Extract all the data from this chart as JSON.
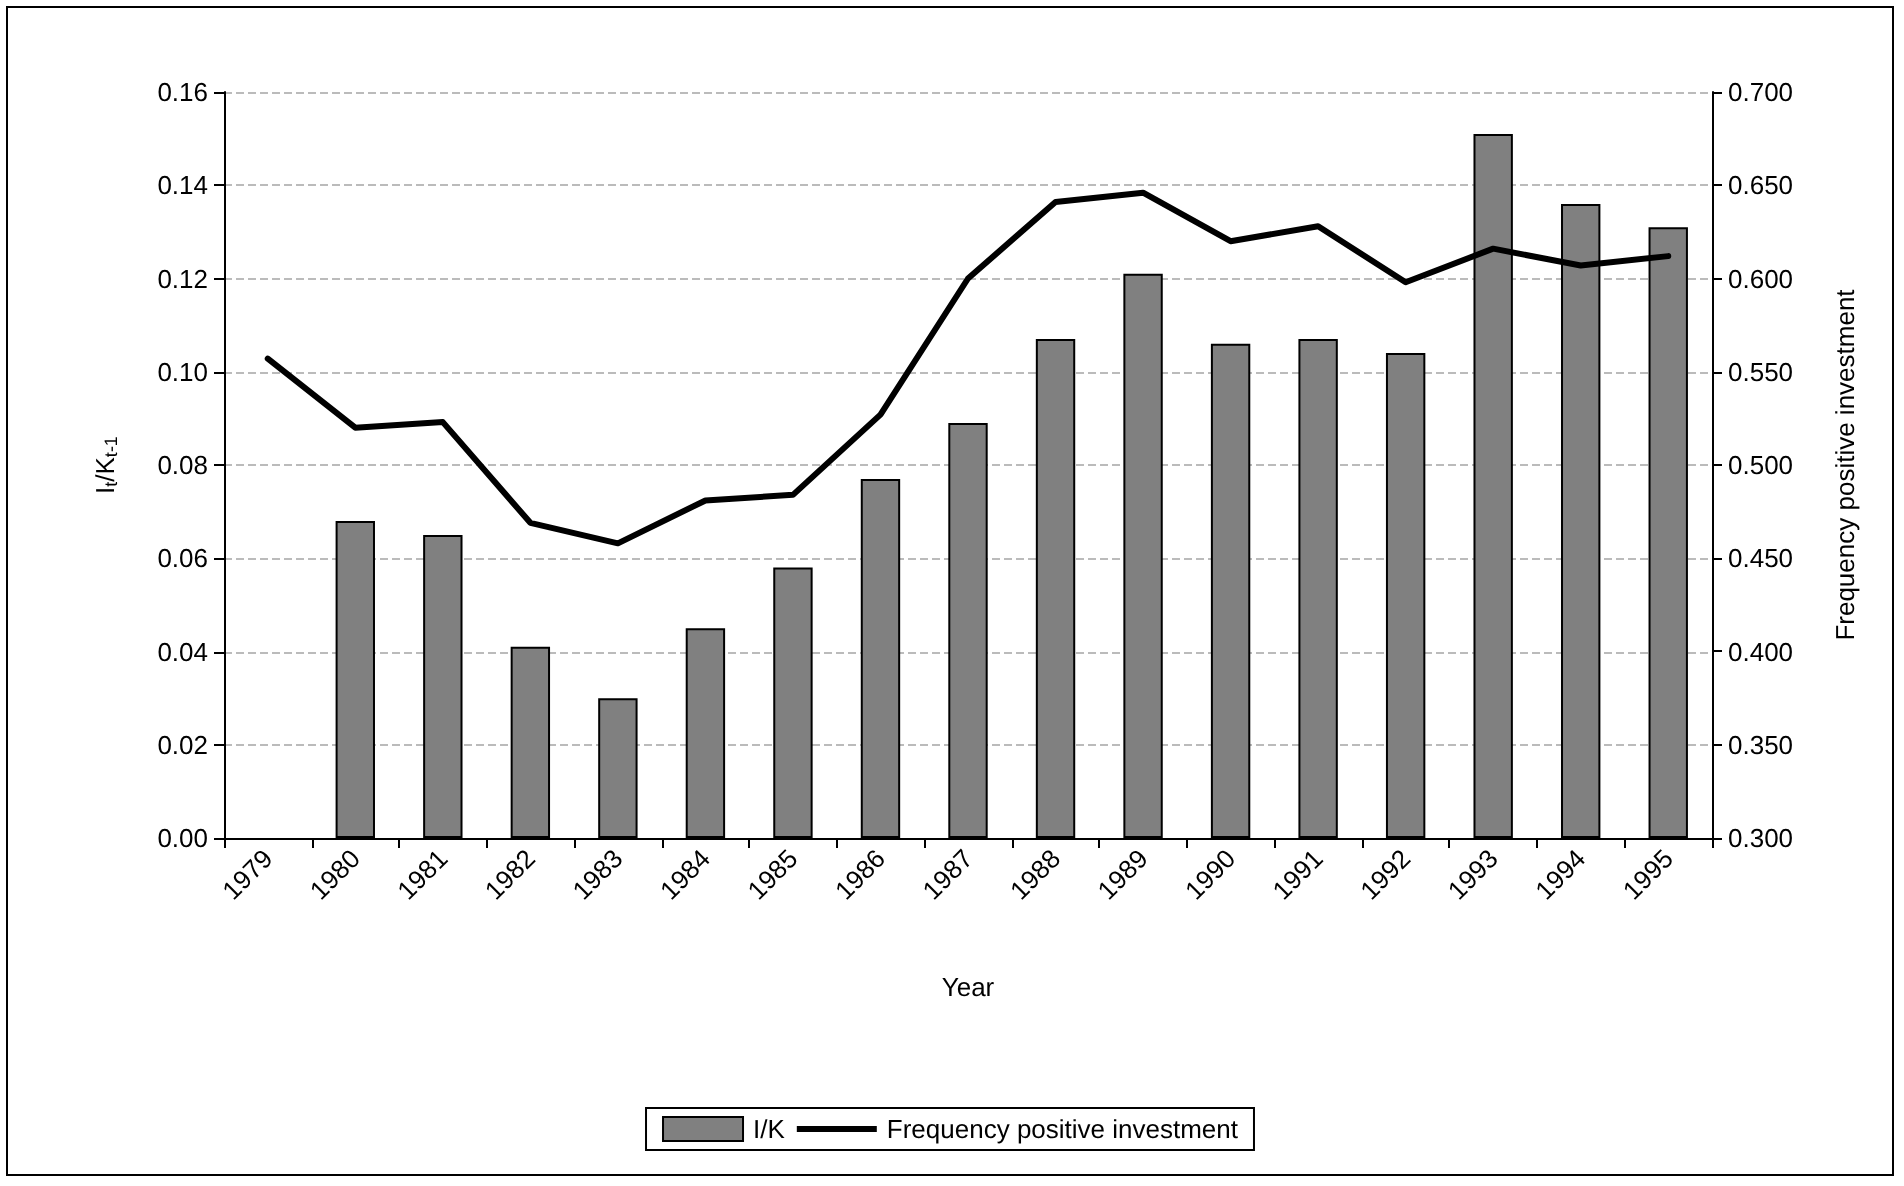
{
  "chart_data": {
    "type": "bar",
    "xlabel": "Year",
    "ylabel": "I$_{t}$/K$_{t-1}$",
    "y2label": "Frequency positive investment",
    "categories": [
      "1979",
      "1980",
      "1981",
      "1982",
      "1983",
      "1984",
      "1985",
      "1986",
      "1987",
      "1988",
      "1989",
      "1990",
      "1991",
      "1992",
      "1993",
      "1994",
      "1995"
    ],
    "series": [
      {
        "name": "I/K",
        "color": "#808080",
        "values": [
          null,
          0.068,
          0.065,
          0.041,
          0.03,
          0.045,
          0.058,
          0.077,
          0.089,
          0.107,
          0.121,
          0.106,
          0.107,
          0.104,
          0.151,
          0.136,
          0.131
        ]
      },
      {
        "name": "Frequency positive investment",
        "type": "line",
        "axis": "y2",
        "color": "#000000",
        "values": [
          0.557,
          0.52,
          0.523,
          0.469,
          0.458,
          0.481,
          0.484,
          0.527,
          0.6,
          0.641,
          0.646,
          0.62,
          0.628,
          0.598,
          0.616,
          0.607,
          0.612
        ]
      }
    ],
    "ylim": [
      0,
      0.16
    ],
    "yticks": [
      {
        "value": 0,
        "label": "0.00"
      },
      {
        "value": 0.02,
        "label": "0.02"
      },
      {
        "value": 0.04,
        "label": "0.04"
      },
      {
        "value": 0.06,
        "label": "0.06"
      },
      {
        "value": 0.08,
        "label": "0.08"
      },
      {
        "value": 0.1,
        "label": "0.10"
      },
      {
        "value": 0.12,
        "label": "0.12"
      },
      {
        "value": 0.14,
        "label": "0.14"
      },
      {
        "value": 0.16,
        "label": "0.16"
      }
    ],
    "y2lim": [
      0.3,
      0.7
    ],
    "y2ticks": [
      {
        "value": 0.3,
        "label": "0.300"
      },
      {
        "value": 0.35,
        "label": "0.350"
      },
      {
        "value": 0.4,
        "label": "0.400"
      },
      {
        "value": 0.45,
        "label": "0.450"
      },
      {
        "value": 0.5,
        "label": "0.500"
      },
      {
        "value": 0.55,
        "label": "0.550"
      },
      {
        "value": 0.6,
        "label": "0.600"
      },
      {
        "value": 0.65,
        "label": "0.650"
      },
      {
        "value": 0.7,
        "label": "0.700"
      }
    ],
    "grid": "y",
    "legend": "bottom",
    "marker": "none",
    "line_style": "solid"
  }
}
